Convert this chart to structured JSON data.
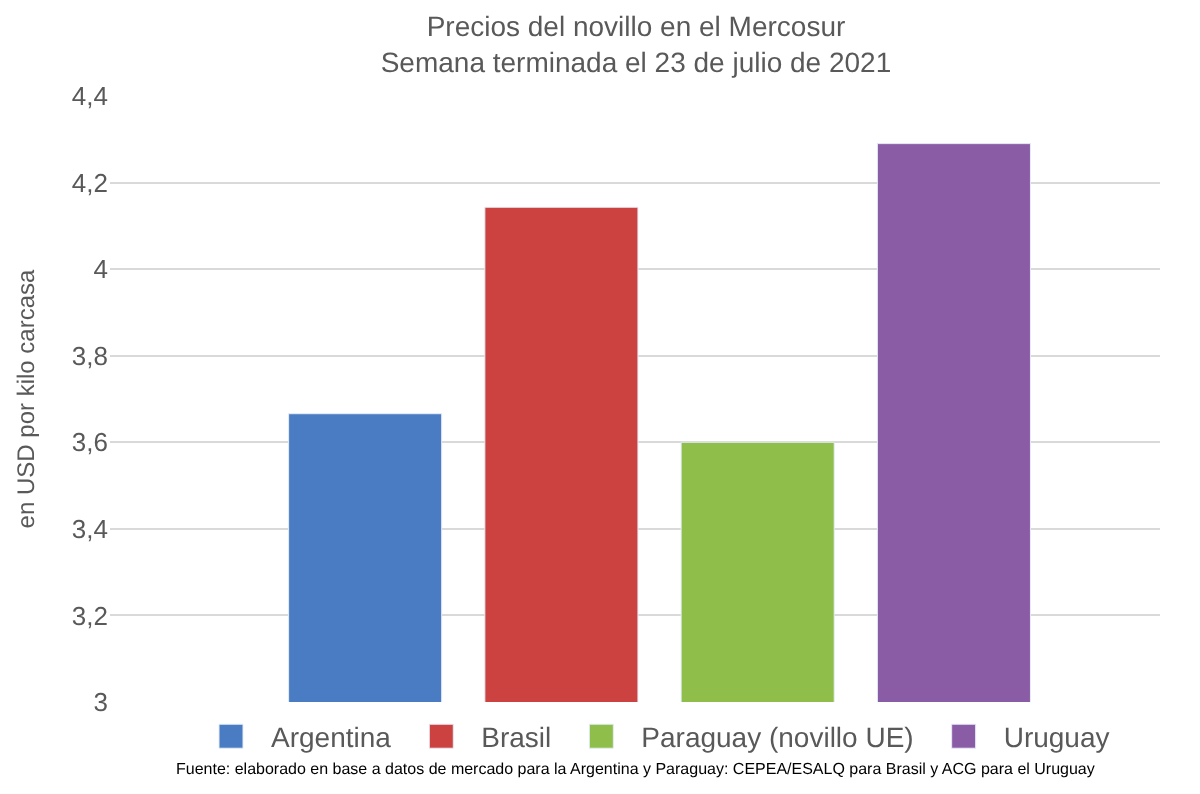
{
  "chart_data": {
    "type": "bar",
    "title": "Precios del novillo en el Mercosur",
    "subtitle": "Semana terminada el 23 de julio de 2021",
    "ylabel": "en USD por kilo carcasa",
    "categories": [
      null,
      null,
      null,
      null
    ],
    "series": [
      {
        "name": "Argentina",
        "color": "#4a7cc3",
        "values": [
          3.666,
          null,
          null,
          null
        ]
      },
      {
        "name": "Brasil",
        "color": "#cc4240",
        "values": [
          null,
          4.143,
          null,
          null
        ]
      },
      {
        "name": "Paraguay (novillo UE)",
        "color": "#8fbf4a",
        "values": [
          null,
          null,
          3.6,
          null
        ]
      },
      {
        "name": "Uruguay",
        "color": "#8a5ca6",
        "values": [
          null,
          null,
          null,
          4.29
        ]
      }
    ],
    "ylim": [
      3,
      4.4
    ],
    "yticks": [
      {
        "value": 3,
        "label": "3"
      },
      {
        "value": 3.2,
        "label": "3,2"
      },
      {
        "value": 3.4,
        "label": "3,4"
      },
      {
        "value": 3.6,
        "label": "3,6"
      },
      {
        "value": 3.8,
        "label": "3,8"
      },
      {
        "value": 4,
        "label": "4"
      },
      {
        "value": 4.2,
        "label": "4,2"
      },
      {
        "value": 4.4,
        "label": "4,4"
      }
    ],
    "grid": "y",
    "legend": "bottom",
    "annotations": [
      "Fuente: elaborado en base a datos de mercado para la Argentina y Paraguay: CEPEA/ESALQ para Brasil y ACG para el Uruguay"
    ]
  }
}
